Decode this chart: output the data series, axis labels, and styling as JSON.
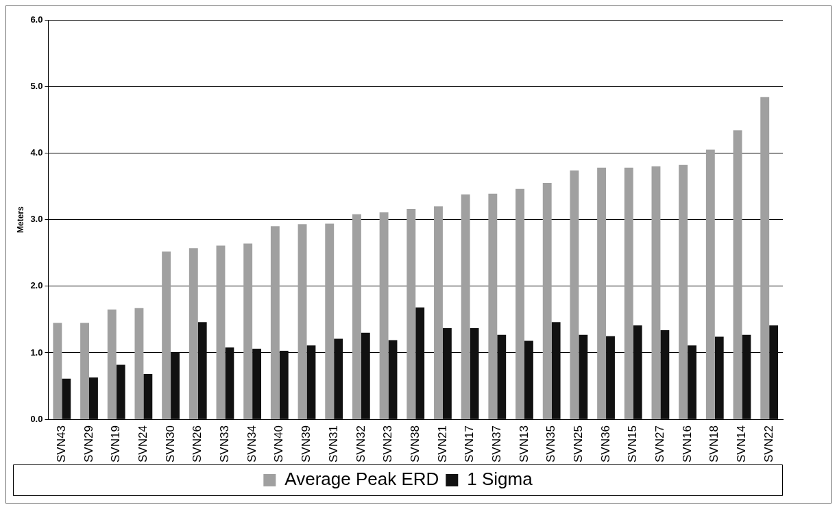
{
  "chart_data": {
    "type": "bar",
    "ylabel": "Meters",
    "categories": [
      "SVN43",
      "SVN29",
      "SVN19",
      "SVN24",
      "SVN30",
      "SVN26",
      "SVN33",
      "SVN34",
      "SVN40",
      "SVN39",
      "SVN31",
      "SVN32",
      "SVN23",
      "SVN38",
      "SVN21",
      "SVN17",
      "SVN37",
      "SVN13",
      "SVN35",
      "SVN25",
      "SVN36",
      "SVN15",
      "SVN27",
      "SVN16",
      "SVN18",
      "SVN14",
      "SVN22"
    ],
    "series": [
      {
        "name": "Average Peak ERD",
        "color": "#a0a0a0",
        "values": [
          1.45,
          1.45,
          1.65,
          1.67,
          2.52,
          2.57,
          2.61,
          2.64,
          2.9,
          2.93,
          2.94,
          3.08,
          3.11,
          3.16,
          3.2,
          3.38,
          3.39,
          3.46,
          3.55,
          3.74,
          3.78,
          3.78,
          3.8,
          3.82,
          4.05,
          4.34,
          4.84
        ]
      },
      {
        "name": "1 Sigma",
        "color": "#111111",
        "values": [
          0.61,
          0.63,
          0.82,
          0.68,
          1.0,
          1.46,
          1.08,
          1.06,
          1.03,
          1.11,
          1.21,
          1.3,
          1.19,
          1.68,
          1.37,
          1.37,
          1.27,
          1.18,
          1.46,
          1.27,
          1.25,
          1.41,
          1.34,
          1.11,
          1.24,
          1.27,
          1.41
        ]
      }
    ],
    "ylim": [
      0,
      6
    ],
    "yticks": [
      {
        "value": 0,
        "label": "0.0"
      },
      {
        "value": 1,
        "label": "1.0"
      },
      {
        "value": 2,
        "label": "2.0"
      },
      {
        "value": 3,
        "label": "3.0"
      },
      {
        "value": 4,
        "label": "4.0"
      },
      {
        "value": 5,
        "label": "5.0"
      },
      {
        "value": 6,
        "label": "6.0"
      }
    ],
    "grid": "y",
    "legend": "bottom"
  }
}
